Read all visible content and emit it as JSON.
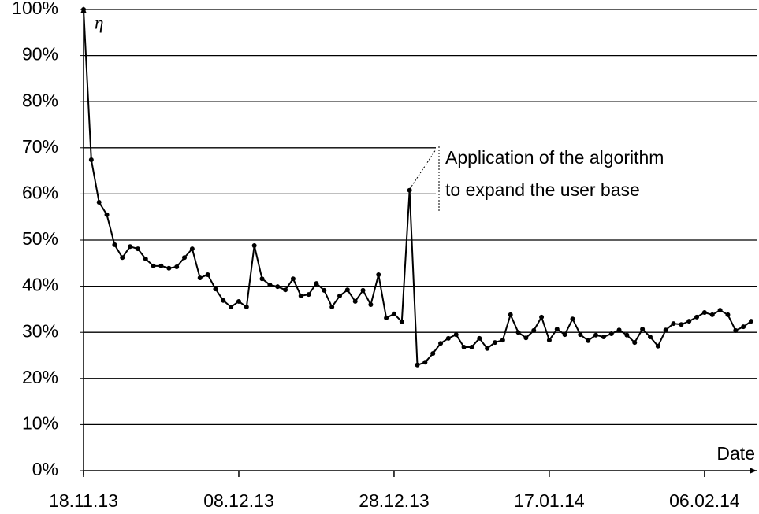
{
  "chart_data": {
    "type": "line",
    "y_label": "η",
    "x_label": "Date",
    "annotation": [
      "Application of the algorithm",
      "to expand the user base"
    ],
    "x": [
      "18.11.13",
      "19.11.13",
      "20.11.13",
      "21.11.13",
      "22.11.13",
      "23.11.13",
      "24.11.13",
      "25.11.13",
      "26.11.13",
      "27.11.13",
      "28.11.13",
      "29.11.13",
      "30.11.13",
      "01.12.13",
      "02.12.13",
      "03.12.13",
      "04.12.13",
      "05.12.13",
      "06.12.13",
      "07.12.13",
      "08.12.13",
      "09.12.13",
      "10.12.13",
      "11.12.13",
      "12.12.13",
      "13.12.13",
      "14.12.13",
      "15.12.13",
      "16.12.13",
      "17.12.13",
      "18.12.13",
      "19.12.13",
      "20.12.13",
      "21.12.13",
      "22.12.13",
      "23.12.13",
      "24.12.13",
      "25.12.13",
      "26.12.13",
      "27.12.13",
      "28.12.13",
      "29.12.13",
      "30.12.13",
      "31.12.13",
      "01.01.14",
      "02.01.14",
      "03.01.14",
      "04.01.14",
      "05.01.14",
      "06.01.14",
      "07.01.14",
      "08.01.14",
      "09.01.14",
      "10.01.14",
      "11.01.14",
      "12.01.14",
      "13.01.14",
      "14.01.14",
      "15.01.14",
      "16.01.14",
      "17.01.14",
      "18.01.14",
      "19.01.14",
      "20.01.14",
      "21.01.14",
      "22.01.14",
      "23.01.14",
      "24.01.14",
      "25.01.14",
      "26.01.14",
      "27.01.14",
      "28.01.14",
      "29.01.14",
      "30.01.14",
      "31.01.14",
      "01.02.14",
      "02.02.14",
      "03.02.14",
      "04.02.14",
      "05.02.14",
      "06.02.14",
      "07.02.14",
      "08.02.14",
      "09.02.14",
      "10.02.14",
      "11.02.14",
      "12.02.14"
    ],
    "series": [
      {
        "color": "#000000",
        "values": [
          100,
          67.4,
          58.2,
          55.5,
          49.0,
          46.2,
          48.6,
          48.1,
          45.9,
          44.4,
          44.4,
          43.9,
          44.2,
          46.2,
          48.1,
          41.8,
          42.5,
          39.4,
          36.9,
          35.5,
          36.7,
          35.5,
          48.8,
          41.6,
          40.3,
          39.9,
          39.2,
          41.6,
          37.9,
          38.2,
          40.6,
          39.1,
          35.5,
          37.9,
          39.2,
          36.7,
          39.1,
          36.0,
          42.5,
          33.1,
          34.0,
          32.3,
          60.8,
          22.9,
          23.5,
          25.4,
          27.6,
          28.7,
          29.5,
          26.8,
          26.8,
          28.7,
          26.5,
          27.8,
          28.3,
          33.8,
          30.0,
          28.8,
          30.4,
          33.3,
          28.3,
          30.7,
          29.5,
          32.9,
          29.5,
          28.2,
          29.4,
          29.0,
          29.7,
          30.5,
          29.4,
          27.8,
          30.7,
          29.0,
          27.0,
          30.5,
          31.9,
          31.7,
          32.4,
          33.3,
          34.3,
          33.8,
          34.8,
          33.8,
          30.4,
          31.2,
          32.4
        ]
      }
    ],
    "xticks": [
      "18.11.13",
      "08.12.13",
      "28.12.13",
      "17.01.14",
      "06.02.14"
    ],
    "ylim": [
      0,
      100
    ],
    "yticks": [
      {
        "value": 0,
        "label": "0%"
      },
      {
        "value": 10,
        "label": "10%"
      },
      {
        "value": 20,
        "label": "20%"
      },
      {
        "value": 30,
        "label": "30%"
      },
      {
        "value": 40,
        "label": "40%"
      },
      {
        "value": 50,
        "label": "50%"
      },
      {
        "value": 60,
        "label": "60%"
      },
      {
        "value": 70,
        "label": "70%"
      },
      {
        "value": 80,
        "label": "80%"
      },
      {
        "value": 90,
        "label": "90%"
      },
      {
        "value": 100,
        "label": "100%"
      }
    ],
    "grid": true
  }
}
